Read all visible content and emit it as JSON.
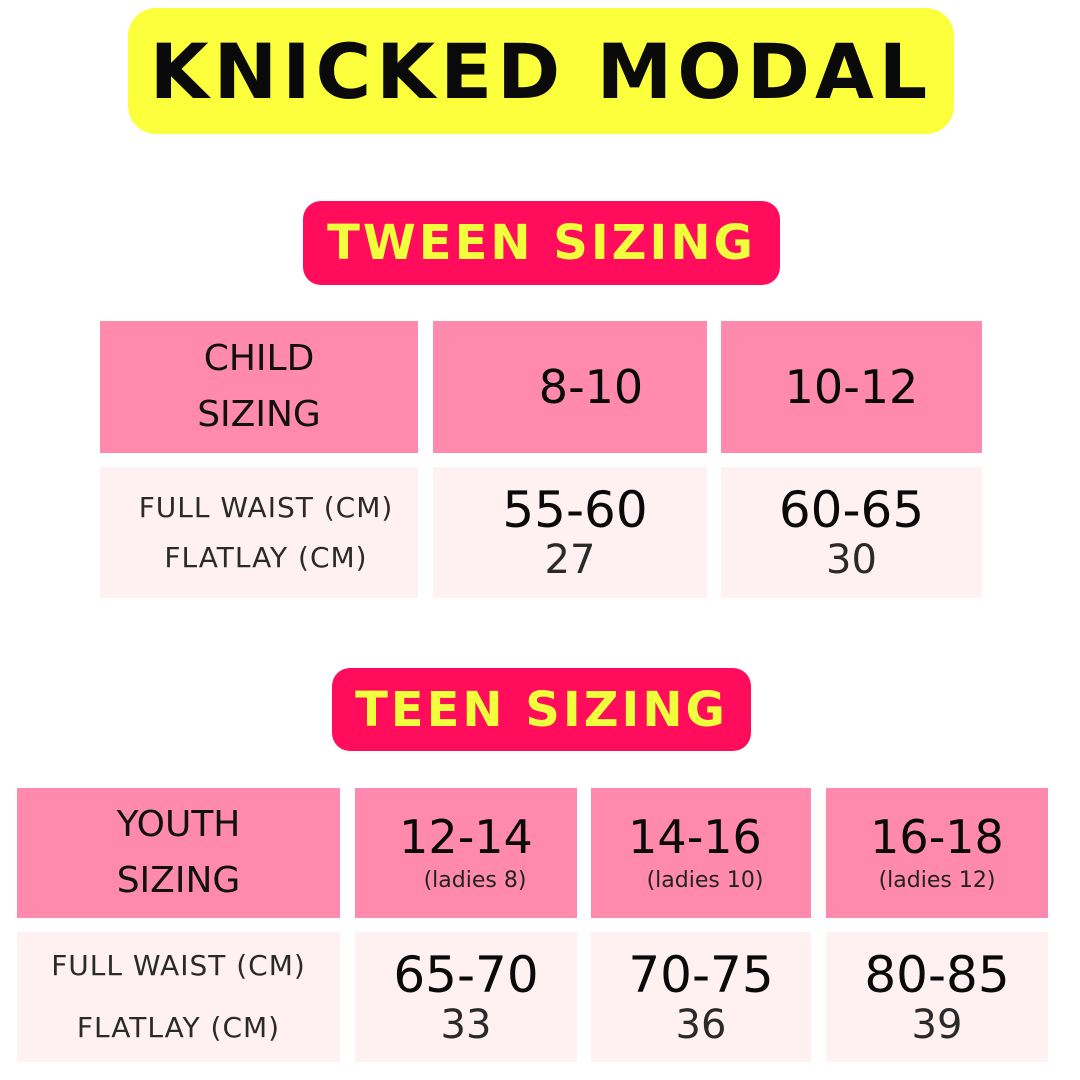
{
  "title": "KNICKED MODAL",
  "tween": {
    "heading": "TWEEN SIZING",
    "label_line1": "CHILD",
    "label_line2": "SIZING",
    "row_label_waist": "FULL WAIST (CM)",
    "row_label_flatlay": "FLATLAY (CM)",
    "columns": [
      {
        "size": "8-10",
        "waist": "55-60",
        "flatlay": "27"
      },
      {
        "size": "10-12",
        "waist": "60-65",
        "flatlay": "30"
      }
    ]
  },
  "teen": {
    "heading": "TEEN SIZING",
    "label_line1": "YOUTH",
    "label_line2": "SIZING",
    "row_label_waist": "FULL WAIST (CM)",
    "row_label_flatlay": "FLATLAY (CM)",
    "columns": [
      {
        "size": "12-14",
        "sub": "(ladies 8)",
        "waist": "65-70",
        "flatlay": "33"
      },
      {
        "size": "14-16",
        "sub": "(ladies 10)",
        "waist": "70-75",
        "flatlay": "36"
      },
      {
        "size": "16-18",
        "sub": "(ladies 12)",
        "waist": "80-85",
        "flatlay": "39"
      }
    ]
  },
  "colors": {
    "title_bg": "#fbff3c",
    "badge_bg": "#ff0d5c",
    "badge_text": "#f2ff3d",
    "header_cell": "#ff8aae",
    "body_cell": "#fff0f2"
  }
}
